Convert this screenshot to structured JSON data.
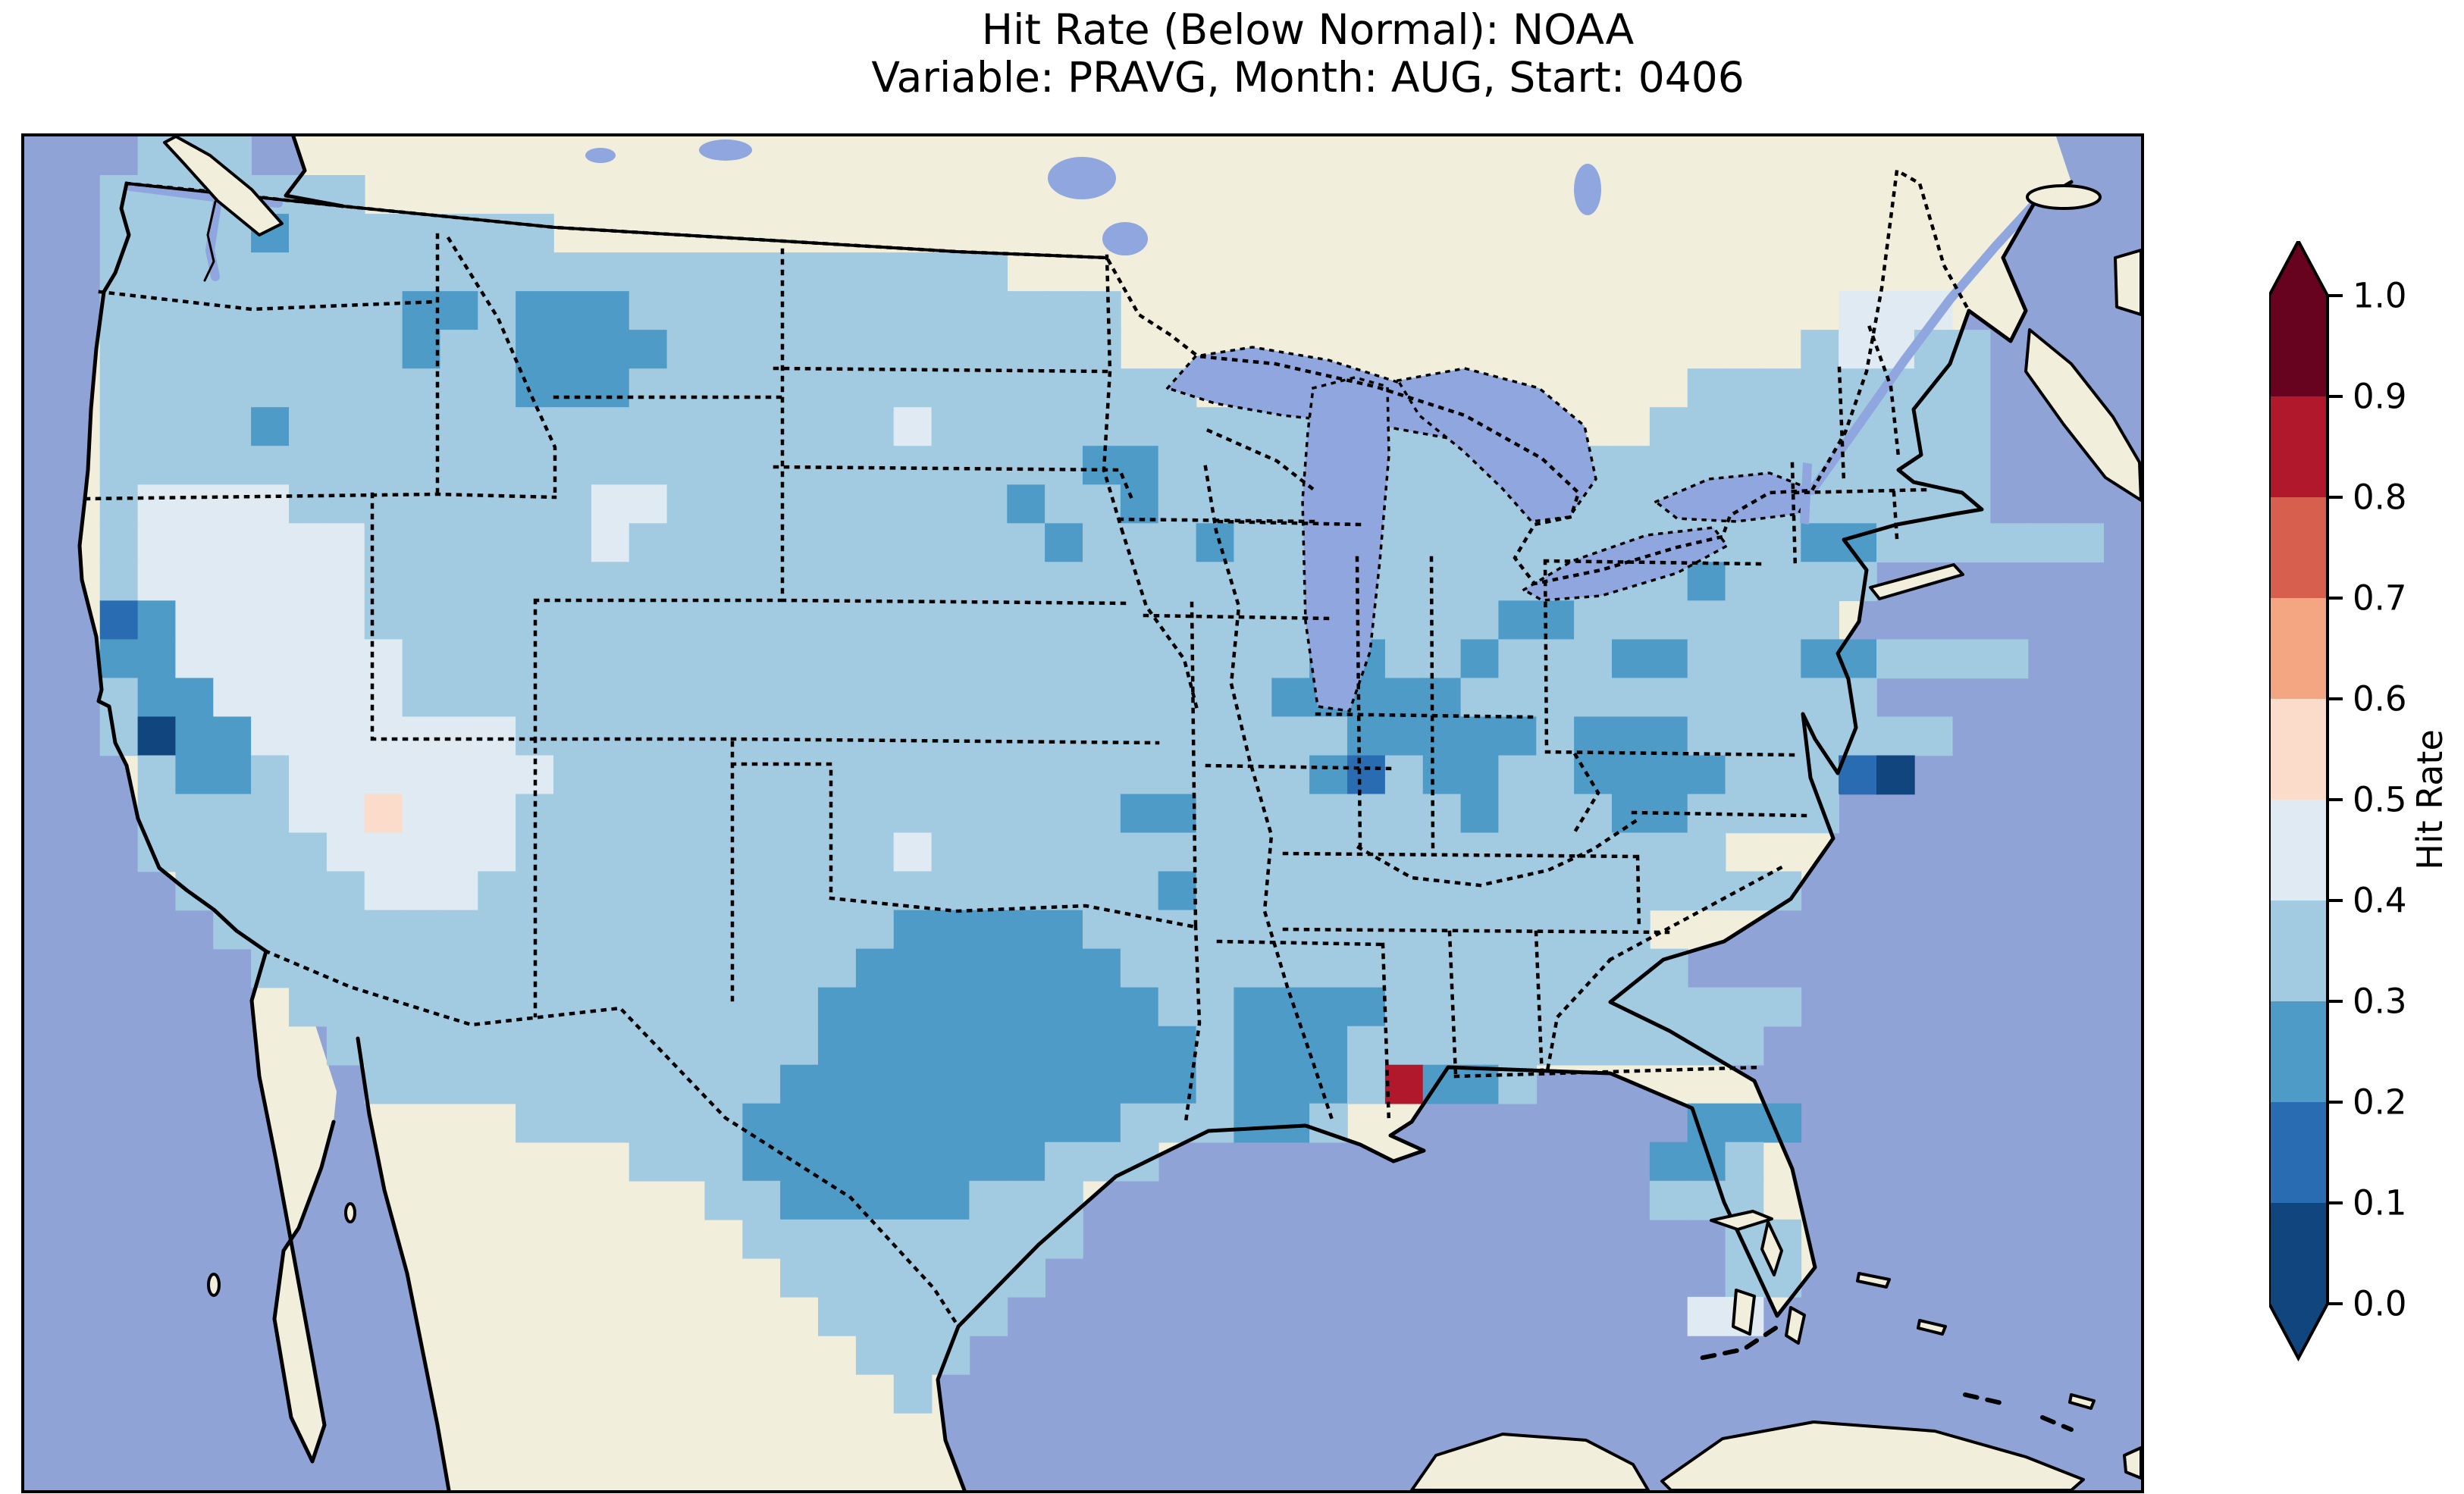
{
  "title": {
    "line1": "Hit Rate (Below Normal): NOAA",
    "line2": "Variable: PRAVG, Month: AUG, Start: 0406"
  },
  "colorbar": {
    "label": "Hit Rate",
    "ticks": [
      "1.0",
      "0.9",
      "0.8",
      "0.7",
      "0.6",
      "0.5",
      "0.4",
      "0.3",
      "0.2",
      "0.1",
      "0.0"
    ],
    "extend": "both"
  },
  "map_colors": {
    "ocean": "#90a3d7",
    "land": "#f1eedb",
    "lake": "#8fa6de",
    "coastline": "#000000"
  },
  "chart_data": {
    "type": "heatmap",
    "title": "Hit Rate (Below Normal): NOAA",
    "subtitle": "Variable: PRAVG, Month: AUG, Start: 0406",
    "metric": "Hit Rate (Below Normal)",
    "source": "NOAA",
    "variable": "PRAVG",
    "month": "AUG",
    "start": "0406",
    "region": "Continental United States",
    "colorbar": {
      "label": "Hit Rate",
      "ticks": [
        1.0,
        0.9,
        0.8,
        0.7,
        0.6,
        0.5,
        0.4,
        0.3,
        0.2,
        0.1,
        0.0
      ],
      "range": [
        0.0,
        1.0
      ],
      "extend_arrows": "both"
    },
    "value_bins": [
      {
        "min": 0.0,
        "max": 0.1,
        "color": "#10457e"
      },
      {
        "min": 0.1,
        "max": 0.2,
        "color": "#2a6cb1"
      },
      {
        "min": 0.2,
        "max": 0.3,
        "color": "#4f9bc8"
      },
      {
        "min": 0.3,
        "max": 0.4,
        "color": "#a2cbe2"
      },
      {
        "min": 0.4,
        "max": 0.5,
        "color": "#dfeaf2"
      },
      {
        "min": 0.5,
        "max": 0.6,
        "color": "#fbdcca"
      },
      {
        "min": 0.6,
        "max": 0.7,
        "color": "#f4a582"
      },
      {
        "min": 0.7,
        "max": 0.8,
        "color": "#d6604d"
      },
      {
        "min": 0.8,
        "max": 0.9,
        "color": "#b2182b"
      },
      {
        "min": 0.9,
        "max": 1.0,
        "color": "#67021f"
      }
    ],
    "notes": "Gridded hit-rate field over CONUS; most cells fall in 0.3-0.4, with 0.2-0.3 patches (Montana, Idaho, Wisconsin, Illinois, Indiana/Ohio, West Virginia/Virginia, NYC area, Texas/Louisiana, north Florida, Sierra Nevada), 0.4-0.5 patches (California valley, Great Basin/Utah, northern Maine, lone cells in SD and OK), one 0.5-0.6 cell near the Four Corners, and isolated 0.0-0.2 cells on the central California coast.",
    "grid": {
      "cols": 56,
      "rows": 35,
      "encoding": {
        ".": "no data",
        "0": "0.0-0.1",
        "1": "0.1-0.2",
        "2": "0.2-0.3",
        "3": "0.3-0.4",
        "4": "0.4-0.5",
        "5": "0.5-0.6"
      },
      "rows_encoded": [
        "...333..................................................",
        "..3333333...............................................",
        "..333323333333..........................................",
        "..333333333333333333333333..............................",
        "..333333332232223333333333333...................444.....",
        "..333333332332222333333333333..................34433....",
        "..33333333333222333333333333333.............33333333....",
        "..3333233333333333333334333333333333333....333333333....",
        "..3333333333333333333333333322333333333..33333333333...",
        "..34444333333334433333333323323333333333333333333333...",
        "..34444443333334333333333332333233333333333333322333333...",
        "..34444443333333333333333333333333333333333323333.....",
        "..1244444333333333333333333333333333333223333333.....",
        "..224444443333333333333333333333332233233322333223333......",
        "..32244444333333333333333333333332222233333333333........",
        "..3022444444433333333333333333333332222232223333333.........",
        "...32234444444333333333333333333332132233222233310.........",
        "...333344544433333333333333332233333332333223333...........",
        "...333334444433333333334333333333333333333333............",
        "....3333344433333333333333333323333333333333333.............",
        ".....33333333333333333322222333333333333333.............",
        "......33333333333333332222222333333333333333............",
        ".......3333333333333322222222233222233333333333...........",
        "........33333333333332222222222322233333333333.........",
        ".........3333333333322222222222322238223.........",
        ".............3333332222222222333223.........222.........",
        "................33322222222333.............223.........",
        "..................3322222333...............333.........",
        "...................333333333.................33.........",
        "....................3333333..................33.........",
        ".....................33333..................44..........",
        "......................333...............................",
        ".......................3................................",
        "........................................................",
        "........................................................"
      ]
    }
  }
}
